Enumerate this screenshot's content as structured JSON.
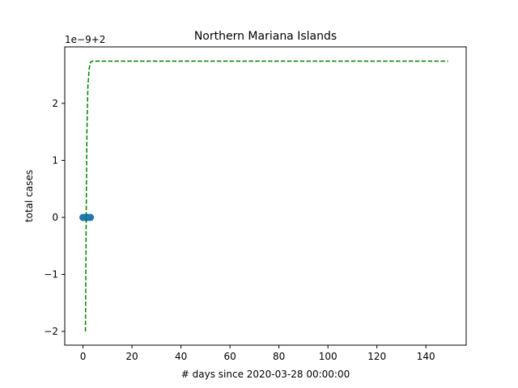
{
  "chart_data": {
    "type": "line",
    "title": "Northern Mariana Islands",
    "xlabel": "# days since 2020-03-28 00:00:00",
    "ylabel": "total cases",
    "offset_label": "1e−9+2",
    "xlim": [
      -7.45,
      156.45
    ],
    "ylim": [
      -2.24,
      2.99
    ],
    "xticks": [
      0,
      20,
      40,
      60,
      80,
      100,
      120,
      140
    ],
    "xtick_labels": [
      "0",
      "20",
      "40",
      "60",
      "80",
      "100",
      "120",
      "140"
    ],
    "yticks": [
      -2,
      -1,
      0,
      1,
      2
    ],
    "ytick_labels": [
      "−2",
      "−1",
      "0",
      "1",
      "2"
    ],
    "grid": false,
    "series": [
      {
        "kind": "scatter",
        "color": "#1f77b4",
        "x": [
          0,
          1,
          2,
          3
        ],
        "y": [
          0,
          0,
          0,
          0
        ]
      },
      {
        "kind": "line",
        "style": "dashed",
        "color": "#008000",
        "x": [
          1,
          1.3,
          1.6,
          2,
          2.5,
          3,
          4,
          6,
          10,
          20,
          40,
          60,
          80,
          100,
          120,
          140,
          149
        ],
        "y": [
          -2,
          0.0,
          1.5,
          2.3,
          2.6,
          2.72,
          2.74,
          2.74,
          2.74,
          2.74,
          2.74,
          2.74,
          2.74,
          2.74,
          2.74,
          2.74,
          2.74
        ]
      }
    ]
  }
}
